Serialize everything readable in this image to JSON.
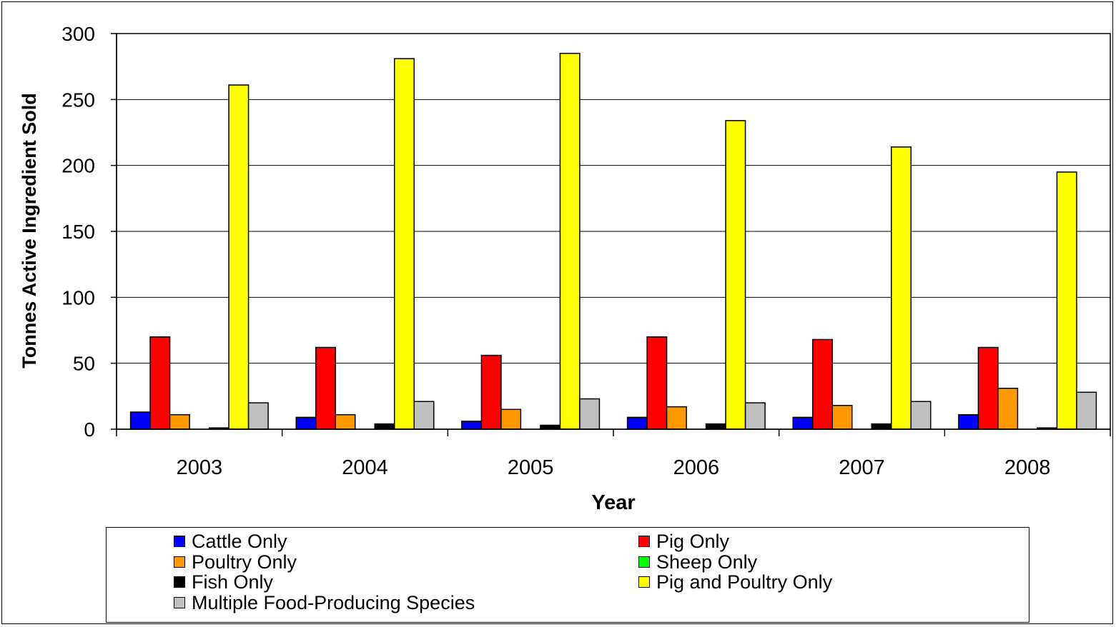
{
  "chart_data": {
    "type": "bar",
    "title": "",
    "xlabel": "Year",
    "ylabel": "Tonnes Active Ingredient Sold",
    "ylim": [
      0,
      300
    ],
    "yticks": [
      0,
      50,
      100,
      150,
      200,
      250,
      300
    ],
    "categories": [
      "2003",
      "2004",
      "2005",
      "2006",
      "2007",
      "2008"
    ],
    "series": [
      {
        "name": "Cattle Only",
        "color": "#0000FF",
        "values": [
          13,
          9,
          6,
          9,
          9,
          11
        ]
      },
      {
        "name": "Pig Only",
        "color": "#FF0000",
        "values": [
          70,
          62,
          56,
          70,
          68,
          62
        ]
      },
      {
        "name": "Poultry Only",
        "color": "#FF9900",
        "values": [
          11,
          11,
          15,
          17,
          18,
          31
        ]
      },
      {
        "name": "Sheep Only",
        "color": "#00FF00",
        "values": [
          0,
          0,
          0,
          0,
          0,
          0
        ]
      },
      {
        "name": "Fish Only",
        "color": "#000000",
        "values": [
          1,
          4,
          3,
          4,
          4,
          1
        ]
      },
      {
        "name": "Pig and Poultry Only",
        "color": "#FFFF00",
        "values": [
          261,
          281,
          285,
          234,
          214,
          195
        ]
      },
      {
        "name": "Multiple Food-Producing Species",
        "color": "#C0C0C0",
        "values": [
          20,
          21,
          23,
          20,
          21,
          28
        ]
      }
    ],
    "grid": true,
    "legend_placement": "bottom"
  }
}
